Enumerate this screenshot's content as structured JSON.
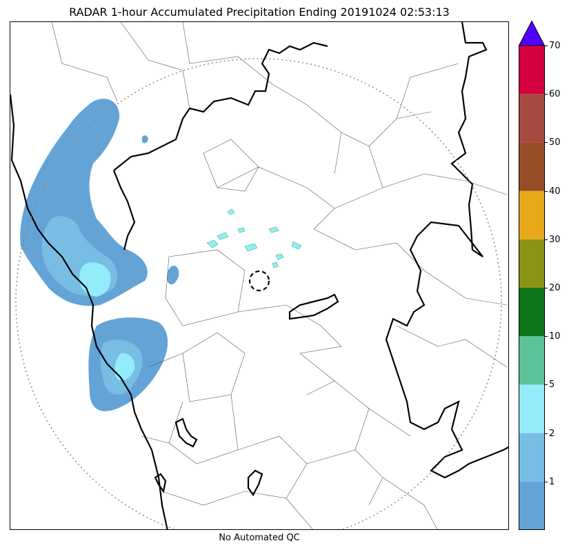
{
  "title": "RADAR 1-hour Accumulated Precipitation Ending 20191024 02:53:13",
  "footer": "No Automated QC",
  "colorbar": {
    "extend_color": "#5000ff",
    "bins": [
      {
        "color": "#64a3d6"
      },
      {
        "color": "#78bde3"
      },
      {
        "color": "#94ecfb"
      },
      {
        "color": "#5cc39a"
      },
      {
        "color": "#0d761a"
      },
      {
        "color": "#8b9414"
      },
      {
        "color": "#e7a919"
      },
      {
        "color": "#994c28"
      },
      {
        "color": "#a64a42"
      },
      {
        "color": "#d5003f"
      }
    ],
    "tick_labels": [
      "1",
      "2",
      "5",
      "10",
      "20",
      "30",
      "40",
      "50",
      "60",
      "70"
    ]
  },
  "map": {
    "radar_range_ring": "dotted circle",
    "radar_site_marker": "dashed circle"
  }
}
